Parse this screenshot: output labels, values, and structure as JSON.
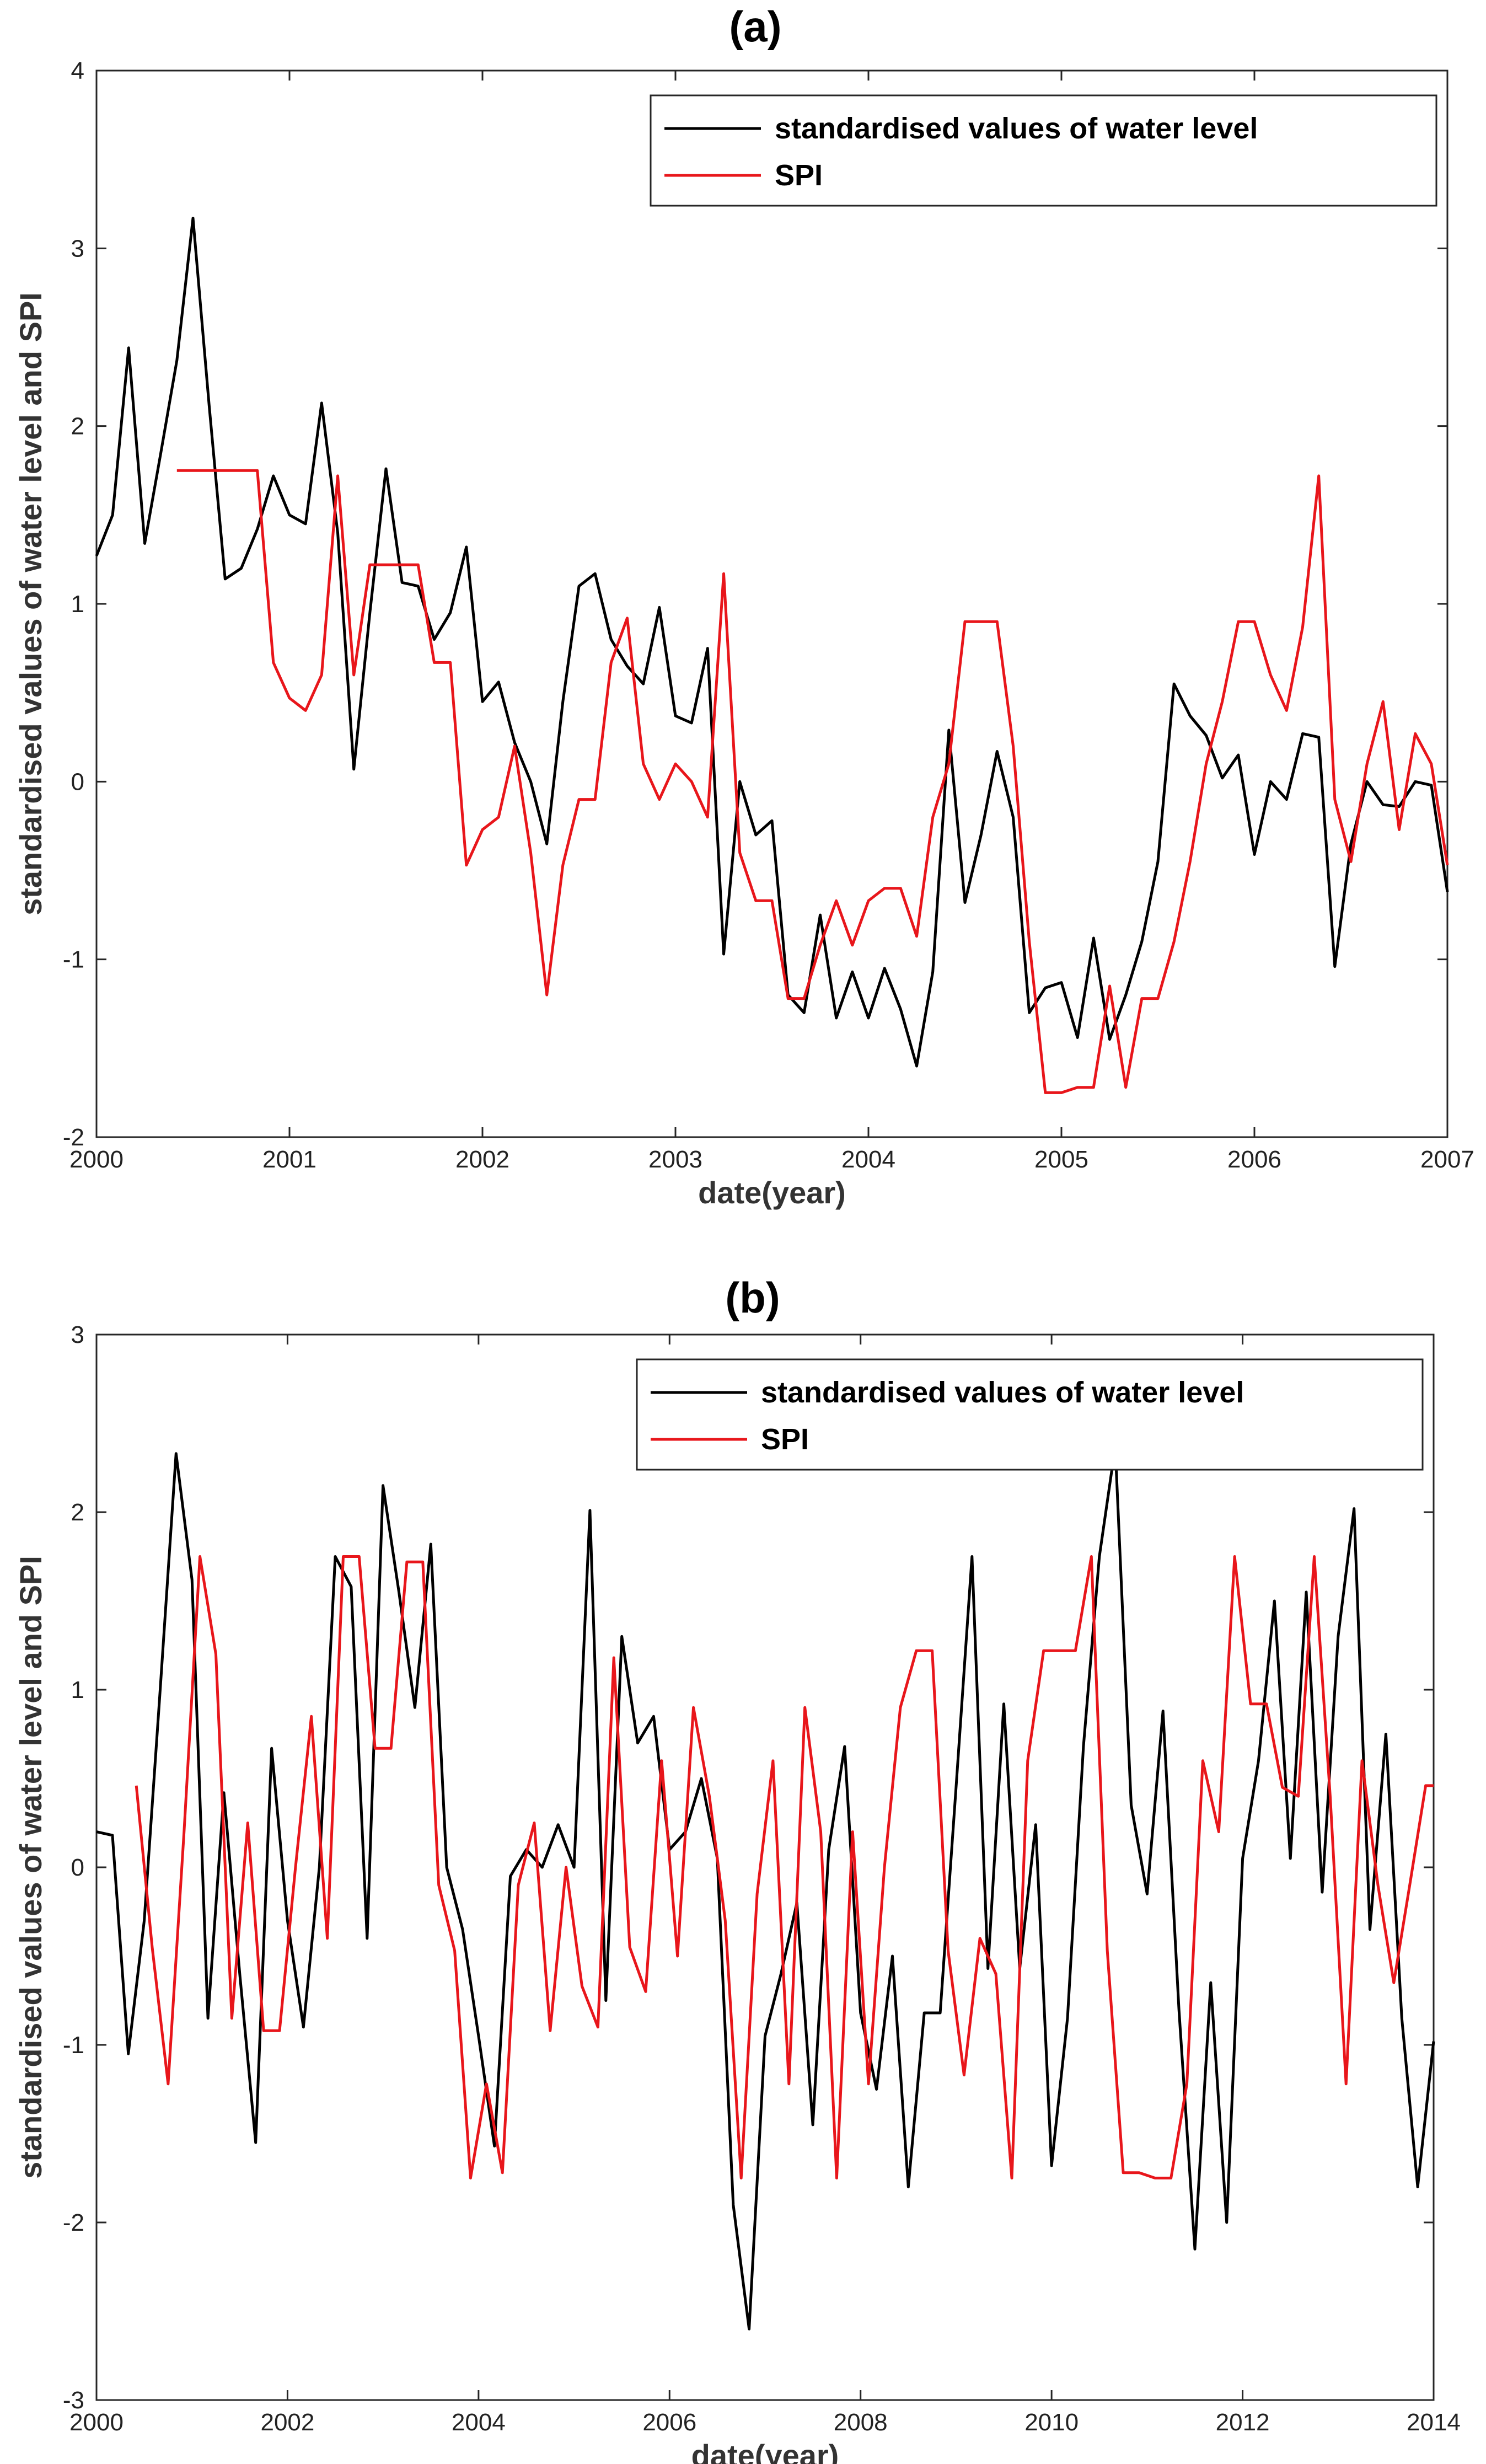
{
  "chart_data": [
    {
      "type": "line",
      "title": "(a)",
      "xlabel": "date(year)",
      "ylabel": "standardised values of water level and SPI",
      "xlim": [
        "2000-01",
        "2007-01"
      ],
      "ylim": [
        -2,
        4
      ],
      "xticks": [
        "2000",
        "2001",
        "2002",
        "2003",
        "2004",
        "2005",
        "2006",
        "2007"
      ],
      "yticks": [
        "-2",
        "-1",
        "0",
        "1",
        "2",
        "3",
        "4"
      ],
      "legend": "top-right",
      "grid": false,
      "series": [
        {
          "name": "standardised values of water level",
          "color": "#000000",
          "x": [
            "2000-01",
            "2000-02",
            "2000-03",
            "2000-04",
            "2000-05",
            "2000-06",
            "2000-07",
            "2000-08",
            "2000-09",
            "2000-10",
            "2000-11",
            "2000-12",
            "2001-01",
            "2001-02",
            "2001-03",
            "2001-04",
            "2001-05",
            "2001-06",
            "2001-07",
            "2001-08",
            "2001-09",
            "2001-10",
            "2001-11",
            "2001-12",
            "2002-01",
            "2002-02",
            "2002-03",
            "2002-04",
            "2002-05",
            "2002-06",
            "2002-07",
            "2002-08",
            "2002-09",
            "2002-10",
            "2002-11",
            "2002-12",
            "2003-01",
            "2003-02",
            "2003-03",
            "2003-04",
            "2003-05",
            "2003-06",
            "2003-07",
            "2003-08",
            "2003-09",
            "2003-10",
            "2003-11",
            "2003-12",
            "2004-01",
            "2004-02",
            "2004-03",
            "2004-04",
            "2004-05",
            "2004-06",
            "2004-07",
            "2004-08",
            "2004-09",
            "2004-10",
            "2004-11",
            "2004-12",
            "2005-01",
            "2005-02",
            "2005-03",
            "2005-04",
            "2005-05",
            "2005-06",
            "2005-07",
            "2005-08",
            "2005-09",
            "2005-10",
            "2005-11",
            "2005-12",
            "2006-01",
            "2006-02",
            "2006-03",
            "2006-04",
            "2006-05",
            "2006-06",
            "2006-07",
            "2006-08",
            "2006-09",
            "2006-10",
            "2006-11",
            "2006-12",
            "2007-01"
          ],
          "values": [
            1.27,
            1.5,
            2.44,
            1.34,
            1.85,
            2.37,
            3.17,
            2.12,
            1.14,
            1.2,
            1.42,
            1.72,
            1.5,
            1.45,
            2.13,
            1.4,
            0.07,
            0.95,
            1.76,
            1.12,
            1.1,
            0.8,
            0.95,
            1.32,
            0.45,
            0.56,
            0.22,
            0.0,
            -0.35,
            0.45,
            1.1,
            1.17,
            0.8,
            0.65,
            0.55,
            0.98,
            0.37,
            0.33,
            0.75,
            -0.97,
            0.0,
            -0.3,
            -0.22,
            -1.2,
            -1.3,
            -0.75,
            -1.33,
            -1.07,
            -1.33,
            -1.05,
            -1.28,
            -1.6,
            -1.07,
            0.29,
            -0.68,
            -0.3,
            0.17,
            -0.2,
            -1.3,
            -1.16,
            -1.13,
            -1.44,
            -0.88,
            -1.45,
            -1.2,
            -0.9,
            -0.45,
            0.55,
            0.37,
            0.26,
            0.02,
            0.15,
            -0.41,
            0.0,
            -0.1,
            0.27,
            0.25,
            -1.04,
            -0.35,
            0.0,
            -0.13,
            -0.14,
            0.0,
            -0.02,
            -0.62
          ]
        },
        {
          "name": "SPI",
          "color": "#e8161b",
          "x": [
            "2000-06",
            "2000-07",
            "2000-08",
            "2000-09",
            "2000-10",
            "2000-11",
            "2000-12",
            "2001-01",
            "2001-02",
            "2001-03",
            "2001-04",
            "2001-05",
            "2001-06",
            "2001-07",
            "2001-08",
            "2001-09",
            "2001-10",
            "2001-11",
            "2001-12",
            "2002-01",
            "2002-02",
            "2002-03",
            "2002-04",
            "2002-05",
            "2002-06",
            "2002-07",
            "2002-08",
            "2002-09",
            "2002-10",
            "2002-11",
            "2002-12",
            "2003-01",
            "2003-02",
            "2003-03",
            "2003-04",
            "2003-05",
            "2003-06",
            "2003-07",
            "2003-08",
            "2003-09",
            "2003-10",
            "2003-11",
            "2003-12",
            "2004-01",
            "2004-02",
            "2004-03",
            "2004-04",
            "2004-05",
            "2004-06",
            "2004-07",
            "2004-08",
            "2004-09",
            "2004-10",
            "2004-11",
            "2004-12",
            "2005-01",
            "2005-02",
            "2005-03",
            "2005-04",
            "2005-05",
            "2005-06",
            "2005-07",
            "2005-08",
            "2005-09",
            "2005-10",
            "2005-11",
            "2005-12",
            "2006-01",
            "2006-02",
            "2006-03",
            "2006-04",
            "2006-05",
            "2006-06",
            "2006-07",
            "2006-08",
            "2006-09",
            "2006-10",
            "2006-11",
            "2006-12",
            "2007-01"
          ],
          "values": [
            1.75,
            1.75,
            1.75,
            1.75,
            1.75,
            1.75,
            0.67,
            0.47,
            0.4,
            0.6,
            1.72,
            0.6,
            1.22,
            1.22,
            1.22,
            1.22,
            0.67,
            0.67,
            -0.47,
            -0.27,
            -0.2,
            0.2,
            -0.4,
            -1.2,
            -0.47,
            -0.1,
            -0.1,
            0.67,
            0.92,
            0.1,
            -0.1,
            0.1,
            0.0,
            -0.2,
            1.17,
            -0.4,
            -0.67,
            -0.67,
            -1.22,
            -1.22,
            -0.92,
            -0.67,
            -0.92,
            -0.67,
            -0.6,
            -0.6,
            -0.87,
            -0.2,
            0.1,
            0.9,
            0.9,
            0.9,
            0.2,
            -0.9,
            -1.75,
            -1.75,
            -1.72,
            -1.72,
            -1.15,
            -1.72,
            -1.22,
            -1.22,
            -0.9,
            -0.45,
            0.1,
            0.45,
            0.9,
            0.9,
            0.6,
            0.4,
            0.87,
            1.72,
            -0.1,
            -0.45,
            0.1,
            0.45,
            -0.27,
            0.27,
            0.1,
            -0.47
          ]
        }
      ]
    },
    {
      "type": "line",
      "title": "(b)",
      "xlabel": "date(year)",
      "ylabel": "standardised values of water level and SPI",
      "xlim": [
        "2000-01",
        "2014-01"
      ],
      "ylim": [
        -3,
        3
      ],
      "xticks": [
        "2000",
        "2002",
        "2004",
        "2006",
        "2008",
        "2010",
        "2012",
        "2014"
      ],
      "yticks": [
        "-3",
        "-2",
        "-1",
        "0",
        "1",
        "2",
        "3"
      ],
      "legend": "top-right",
      "grid": false,
      "series": [
        {
          "name": "standardised values of water level",
          "color": "#000000",
          "x": [
            "2000-01",
            "2000-03",
            "2000-05",
            "2000-07",
            "2000-09",
            "2000-11",
            "2001-01",
            "2001-03",
            "2001-05",
            "2001-07",
            "2001-09",
            "2001-11",
            "2002-01",
            "2002-03",
            "2002-05",
            "2002-07",
            "2002-09",
            "2002-11",
            "2003-01",
            "2003-03",
            "2003-05",
            "2003-07",
            "2003-09",
            "2003-11",
            "2004-01",
            "2004-03",
            "2004-05",
            "2004-07",
            "2004-09",
            "2004-11",
            "2005-01",
            "2005-03",
            "2005-05",
            "2005-07",
            "2005-09",
            "2005-11",
            "2006-01",
            "2006-03",
            "2006-05",
            "2006-07",
            "2006-09",
            "2006-11",
            "2007-01",
            "2007-03",
            "2007-05",
            "2007-07",
            "2007-09",
            "2007-11",
            "2008-01",
            "2008-03",
            "2008-05",
            "2008-07",
            "2008-09",
            "2008-11",
            "2009-01",
            "2009-03",
            "2009-05",
            "2009-07",
            "2009-09",
            "2009-11",
            "2010-01",
            "2010-03",
            "2010-05",
            "2010-07",
            "2010-09",
            "2010-11",
            "2011-01",
            "2011-03",
            "2011-05",
            "2011-07",
            "2011-09",
            "2011-11",
            "2012-01",
            "2012-03",
            "2012-05",
            "2012-07",
            "2012-09",
            "2012-11",
            "2013-01",
            "2013-03",
            "2013-05",
            "2013-07",
            "2013-09",
            "2013-11",
            "2014-01"
          ],
          "values": [
            0.2,
            0.18,
            -1.05,
            -0.3,
            1.0,
            2.33,
            1.62,
            -0.85,
            0.42,
            -0.6,
            -1.55,
            0.67,
            -0.3,
            -0.9,
            0.0,
            1.75,
            1.58,
            -0.4,
            2.15,
            1.55,
            0.9,
            1.82,
            0.0,
            -0.35,
            -0.95,
            -1.57,
            -0.05,
            0.1,
            0.0,
            0.24,
            0.0,
            2.01,
            -0.75,
            1.3,
            0.7,
            0.85,
            0.1,
            0.2,
            0.5,
            0.05,
            -1.9,
            -2.6,
            -0.95,
            -0.6,
            -0.2,
            -1.45,
            0.1,
            0.68,
            -0.82,
            -1.25,
            -0.5,
            -1.8,
            -0.82,
            -0.82,
            0.45,
            1.75,
            -0.57,
            0.92,
            -0.57,
            0.24,
            -1.68,
            -0.85,
            0.68,
            1.75,
            2.37,
            0.35,
            -0.15,
            0.88,
            -0.8,
            -2.15,
            -0.65,
            -2.0,
            0.05,
            0.6,
            1.5,
            0.05,
            1.55,
            -0.14,
            1.3,
            2.02,
            -0.35,
            0.75,
            -0.85,
            -1.8,
            -0.98
          ]
        },
        {
          "name": "SPI",
          "color": "#e8161b",
          "x": [
            "2000-06",
            "2000-08",
            "2000-10",
            "2000-12",
            "2001-02",
            "2001-04",
            "2001-06",
            "2001-08",
            "2001-10",
            "2001-12",
            "2002-02",
            "2002-04",
            "2002-06",
            "2002-08",
            "2002-10",
            "2002-12",
            "2003-02",
            "2003-04",
            "2003-06",
            "2003-08",
            "2003-10",
            "2003-12",
            "2004-02",
            "2004-04",
            "2004-06",
            "2004-08",
            "2004-10",
            "2004-12",
            "2005-02",
            "2005-04",
            "2005-06",
            "2005-08",
            "2005-10",
            "2005-12",
            "2006-02",
            "2006-04",
            "2006-06",
            "2006-08",
            "2006-10",
            "2006-12",
            "2007-02",
            "2007-04",
            "2007-06",
            "2007-08",
            "2007-10",
            "2007-12",
            "2008-02",
            "2008-04",
            "2008-06",
            "2008-08",
            "2008-10",
            "2008-12",
            "2009-02",
            "2009-04",
            "2009-06",
            "2009-08",
            "2009-10",
            "2009-12",
            "2010-02",
            "2010-04",
            "2010-06",
            "2010-08",
            "2010-10",
            "2010-12",
            "2011-02",
            "2011-04",
            "2011-06",
            "2011-08",
            "2011-10",
            "2011-12",
            "2012-02",
            "2012-04",
            "2012-06",
            "2012-08",
            "2012-10",
            "2012-12",
            "2013-02",
            "2013-04",
            "2013-06",
            "2013-08",
            "2013-10",
            "2013-12",
            "2014-01"
          ],
          "values": [
            0.46,
            -0.45,
            -1.22,
            0.2,
            1.75,
            1.2,
            -0.85,
            0.25,
            -0.92,
            -0.92,
            0.0,
            0.85,
            -0.4,
            1.75,
            1.75,
            0.67,
            0.67,
            1.72,
            1.72,
            -0.1,
            -0.47,
            -1.75,
            -1.22,
            -1.72,
            -0.1,
            0.25,
            -0.92,
            0.0,
            -0.67,
            -0.9,
            1.18,
            -0.45,
            -0.7,
            0.6,
            -0.5,
            0.9,
            0.4,
            -0.3,
            -1.75,
            -0.15,
            0.6,
            -1.22,
            0.9,
            0.2,
            -1.75,
            0.2,
            -1.22,
            0.0,
            0.9,
            1.22,
            1.22,
            -0.47,
            -1.17,
            -0.4,
            -0.6,
            -1.75,
            0.6,
            1.22,
            1.22,
            1.22,
            1.75,
            -0.47,
            -1.72,
            -1.72,
            -1.75,
            -1.75,
            -1.22,
            0.6,
            0.2,
            1.75,
            0.92,
            0.92,
            0.45,
            0.4,
            1.75,
            0.4,
            -1.22,
            0.6,
            -0.1,
            -0.65,
            -0.1,
            0.46,
            0.46
          ]
        }
      ]
    }
  ]
}
